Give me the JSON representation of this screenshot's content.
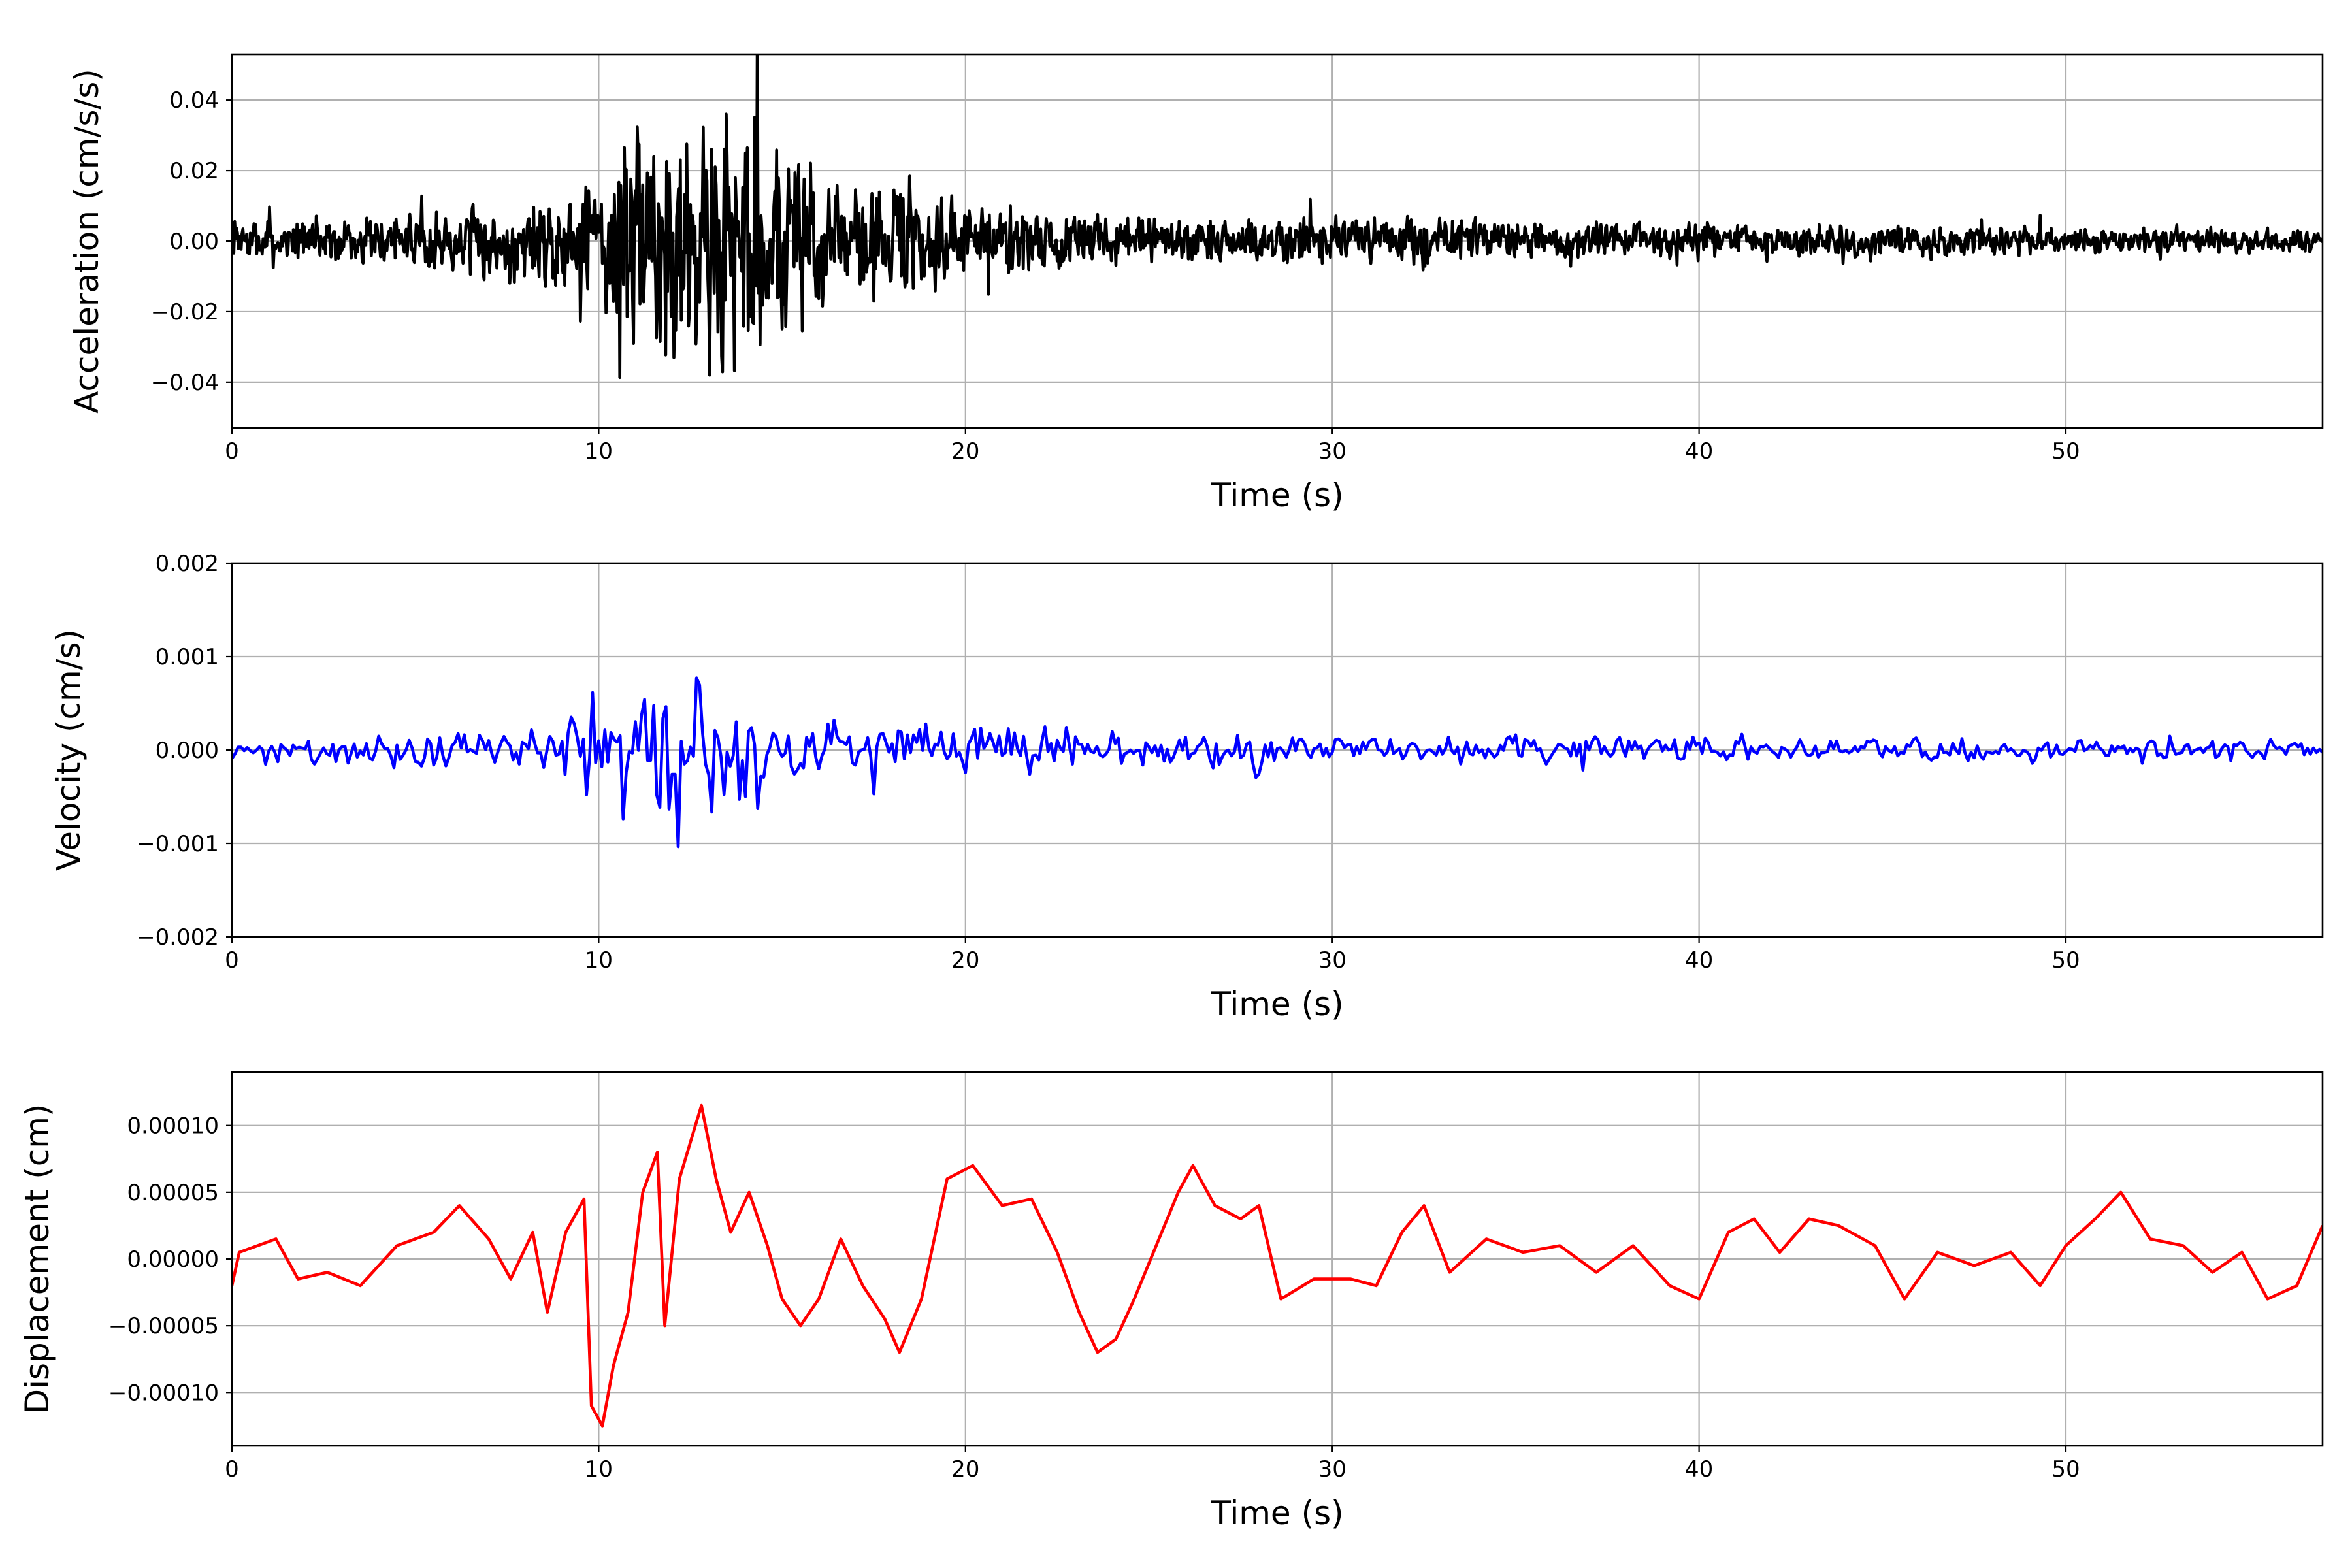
{
  "chart_data": [
    {
      "type": "line",
      "title": "",
      "xlabel": "Time (s)",
      "ylabel": "Acceleration (cm/s/s)",
      "xlim": [
        0,
        57
      ],
      "ylim": [
        -0.053,
        0.053
      ],
      "xticks": [
        0,
        10,
        20,
        30,
        40,
        50
      ],
      "xtick_labels": [
        "0",
        "10",
        "20",
        "30",
        "40",
        "50"
      ],
      "yticks": [
        -0.04,
        -0.02,
        0.0,
        0.02,
        0.04
      ],
      "ytick_labels": [
        "−0.04",
        "−0.02",
        "0.00",
        "0.02",
        "0.04"
      ],
      "grid": true,
      "color": "#000000",
      "series": [
        {
          "x": [
            0,
            2,
            4,
            5.5,
            7,
            8,
            9,
            9.5,
            10,
            10.5,
            11,
            11.5,
            12,
            12.5,
            13,
            13.5,
            14,
            14.5,
            15,
            16,
            17,
            18,
            19,
            20,
            22,
            24,
            26,
            28,
            29,
            31,
            35,
            40,
            45,
            50,
            55,
            57
          ],
          "amplitude": [
            0.007,
            0.007,
            0.008,
            0.01,
            0.012,
            0.014,
            0.016,
            0.022,
            0.03,
            0.035,
            0.042,
            0.046,
            0.046,
            0.044,
            0.042,
            0.046,
            0.048,
            0.044,
            0.036,
            0.025,
            0.021,
            0.019,
            0.016,
            0.013,
            0.011,
            0.009,
            0.009,
            0.008,
            0.009,
            0.008,
            0.007,
            0.006,
            0.006,
            0.005,
            0.004,
            0.004
          ],
          "samples_per_second": 40,
          "seed": 7
        }
      ]
    },
    {
      "type": "line",
      "title": "",
      "xlabel": "Time (s)",
      "ylabel": "Velocity (cm/s)",
      "xlim": [
        0,
        57
      ],
      "ylim": [
        -0.002,
        0.002
      ],
      "xticks": [
        0,
        10,
        20,
        30,
        40,
        50
      ],
      "xtick_labels": [
        "0",
        "10",
        "20",
        "30",
        "40",
        "50"
      ],
      "yticks": [
        -0.002,
        -0.001,
        0.0,
        0.001,
        0.002
      ],
      "ytick_labels": [
        "−0.002",
        "−0.001",
        "0.000",
        "0.001",
        "0.002"
      ],
      "grid": true,
      "color": "#0000ff",
      "series": [
        {
          "x": [
            0,
            3,
            6,
            8,
            9,
            9.6,
            10.2,
            11,
            11.8,
            12.5,
            13,
            14,
            15,
            16,
            18,
            20,
            22,
            23,
            25,
            27,
            30,
            35,
            40,
            45,
            50,
            55,
            57
          ],
          "amplitude": [
            0.00018,
            0.0002,
            0.00022,
            0.00028,
            0.0004,
            0.00065,
            0.0009,
            0.0011,
            0.0016,
            0.0012,
            0.001,
            0.00085,
            0.0007,
            0.0004,
            0.00035,
            0.00035,
            0.0003,
            0.00035,
            0.0003,
            0.00025,
            0.00018,
            0.00018,
            0.00016,
            0.00016,
            0.00014,
            0.00014,
            0.00012
          ],
          "samples_per_second": 12,
          "seed": 21
        }
      ]
    },
    {
      "type": "line",
      "title": "",
      "xlabel": "Time (s)",
      "ylabel": "Displacement (cm)",
      "xlim": [
        0,
        57
      ],
      "ylim": [
        -0.00014,
        0.00014
      ],
      "xticks": [
        0,
        10,
        20,
        30,
        40,
        50
      ],
      "xtick_labels": [
        "0",
        "10",
        "20",
        "30",
        "40",
        "50"
      ],
      "yticks": [
        -0.0001,
        -5e-05,
        0.0,
        5e-05,
        0.0001
      ],
      "ytick_labels": [
        "−0.00010",
        "−0.00005",
        "0.00000",
        "0.00005",
        "0.00010"
      ],
      "grid": true,
      "color": "#ff0000",
      "series": [
        {
          "x": [
            0,
            0.2,
            1.2,
            1.8,
            2.6,
            3.5,
            4.5,
            5.5,
            6.2,
            7.0,
            7.6,
            8.2,
            8.6,
            9.1,
            9.6,
            9.8,
            10.1,
            10.4,
            10.8,
            11.2,
            11.6,
            11.8,
            12.2,
            12.8,
            13.2,
            13.6,
            14.1,
            14.6,
            15.0,
            15.5,
            16.0,
            16.6,
            17.2,
            17.8,
            18.2,
            18.8,
            19.5,
            20.2,
            21.0,
            21.8,
            22.5,
            23.1,
            23.6,
            24.1,
            24.6,
            25.2,
            25.8,
            26.2,
            26.8,
            27.5,
            28.0,
            28.6,
            29.5,
            30.5,
            31.2,
            31.9,
            32.5,
            33.2,
            34.2,
            35.2,
            36.2,
            37.2,
            38.2,
            39.2,
            40.0,
            40.8,
            41.5,
            42.2,
            43.0,
            43.8,
            44.8,
            45.6,
            46.5,
            47.5,
            48.5,
            49.3,
            50.0,
            50.8,
            51.5,
            52.3,
            53.2,
            54.0,
            54.8,
            55.5,
            56.3,
            57.0
          ],
          "y": [
            -2e-05,
            5e-06,
            1.5e-05,
            -1.5e-05,
            -1e-05,
            -2e-05,
            1e-05,
            2e-05,
            4e-05,
            1.5e-05,
            -1.5e-05,
            2e-05,
            -4e-05,
            2e-05,
            4.5e-05,
            -0.00011,
            -0.000125,
            -8e-05,
            -4e-05,
            5e-05,
            8e-05,
            -5e-05,
            6e-05,
            0.000115,
            6e-05,
            2e-05,
            5e-05,
            1e-05,
            -3e-05,
            -5e-05,
            -3e-05,
            1.5e-05,
            -2e-05,
            -4.5e-05,
            -7e-05,
            -3e-05,
            6e-05,
            7e-05,
            4e-05,
            4.5e-05,
            5e-06,
            -4e-05,
            -7e-05,
            -6e-05,
            -3e-05,
            1e-05,
            5e-05,
            7e-05,
            4e-05,
            3e-05,
            4e-05,
            -3e-05,
            -1.5e-05,
            -1.5e-05,
            -2e-05,
            2e-05,
            4e-05,
            -1e-05,
            1.5e-05,
            5e-06,
            1e-05,
            -1e-05,
            1e-05,
            -2e-05,
            -3e-05,
            2e-05,
            3e-05,
            5e-06,
            3e-05,
            2.5e-05,
            1e-05,
            -3e-05,
            5e-06,
            -5e-06,
            5e-06,
            -2e-05,
            1e-05,
            3e-05,
            5e-05,
            1.5e-05,
            1e-05,
            -1e-05,
            5e-06,
            -3e-05,
            -2e-05,
            2.5e-05
          ]
        }
      ]
    }
  ]
}
